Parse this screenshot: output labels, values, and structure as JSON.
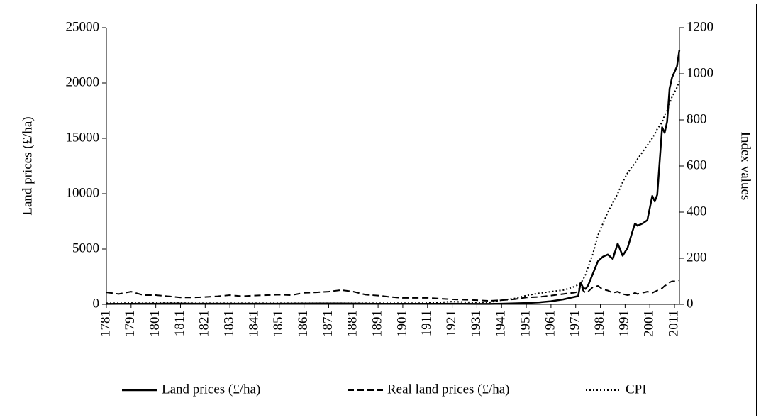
{
  "chart_data": {
    "type": "line",
    "ylabel": "Land prices (£/ha)",
    "y2label": "Index values",
    "x": [
      1781,
      1786,
      1791,
      1796,
      1801,
      1806,
      1811,
      1816,
      1821,
      1826,
      1831,
      1836,
      1841,
      1846,
      1851,
      1856,
      1861,
      1866,
      1871,
      1876,
      1881,
      1886,
      1891,
      1896,
      1901,
      1906,
      1911,
      1916,
      1921,
      1926,
      1931,
      1936,
      1941,
      1946,
      1951,
      1956,
      1961,
      1966,
      1968,
      1970,
      1971,
      1972,
      1973,
      1974,
      1975,
      1976,
      1978,
      1980,
      1982,
      1984,
      1986,
      1988,
      1990,
      1992,
      1994,
      1995,
      1996,
      1998,
      2000,
      2002,
      2003,
      2004,
      2006,
      2007,
      2008,
      2009,
      2010,
      2012,
      2013
    ],
    "series": [
      {
        "name": "Land prices (£/ha)",
        "color": "#000000",
        "dash": "solid",
        "values": [
          40,
          45,
          50,
          55,
          60,
          70,
          70,
          60,
          55,
          55,
          55,
          55,
          60,
          60,
          60,
          65,
          70,
          75,
          80,
          85,
          70,
          60,
          50,
          45,
          45,
          45,
          45,
          50,
          60,
          50,
          40,
          40,
          60,
          90,
          120,
          170,
          280,
          450,
          550,
          650,
          700,
          750,
          1950,
          1500,
          1400,
          1700,
          2800,
          3900,
          4300,
          4500,
          4100,
          5500,
          4400,
          5100,
          6600,
          7300,
          7100,
          7300,
          7600,
          9800,
          9300,
          9900,
          16000,
          15500,
          16500,
          19500,
          20500,
          21500,
          23000
        ]
      },
      {
        "name": "Real land prices (£/ha)",
        "color": "#000000",
        "dash": "dashed",
        "axis": "y2",
        "values": [
          52,
          45,
          55,
          40,
          40,
          35,
          30,
          30,
          32,
          35,
          40,
          35,
          38,
          40,
          42,
          40,
          50,
          52,
          55,
          62,
          55,
          42,
          38,
          32,
          28,
          28,
          28,
          25,
          22,
          20,
          18,
          15,
          18,
          22,
          30,
          32,
          38,
          45,
          48,
          50,
          52,
          55,
          90,
          60,
          50,
          55,
          75,
          80,
          65,
          60,
          50,
          55,
          45,
          40,
          45,
          50,
          45,
          50,
          55,
          50,
          55,
          60,
          70,
          80,
          85,
          95,
          100,
          100,
          105
        ]
      },
      {
        "name": "CPI",
        "color": "#000000",
        "dash": "dotted",
        "axis": "y2",
        "values": [
          5,
          5,
          6,
          5,
          6,
          6,
          6,
          5,
          5,
          5,
          5,
          5,
          5,
          5,
          5,
          5,
          5,
          5,
          5,
          5,
          5,
          5,
          5,
          5,
          5,
          5,
          6,
          9,
          12,
          10,
          9,
          9,
          18,
          25,
          38,
          48,
          55,
          62,
          68,
          75,
          80,
          85,
          92,
          108,
          130,
          160,
          220,
          300,
          350,
          400,
          440,
          480,
          530,
          570,
          600,
          610,
          630,
          660,
          690,
          720,
          740,
          760,
          790,
          820,
          840,
          870,
          900,
          940,
          970
        ]
      }
    ],
    "xlim": [
      1781,
      2013
    ],
    "xticks": [
      1781,
      1791,
      1801,
      1811,
      1821,
      1831,
      1841,
      1851,
      1861,
      1871,
      1881,
      1891,
      1901,
      1911,
      1921,
      1931,
      1941,
      1951,
      1961,
      1971,
      1981,
      1991,
      2001,
      2011
    ],
    "ylim": [
      0,
      25000
    ],
    "yticks": [
      0,
      5000,
      10000,
      15000,
      20000,
      25000
    ],
    "y2lim": [
      0,
      1200
    ],
    "y2ticks": [
      0,
      200,
      400,
      600,
      800,
      1000,
      1200
    ],
    "legend": "bottom"
  }
}
